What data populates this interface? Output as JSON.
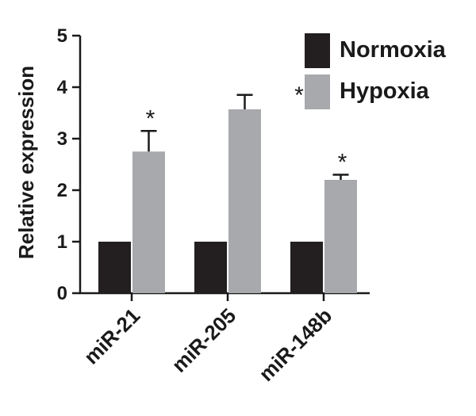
{
  "chart_data": {
    "type": "bar",
    "title": "",
    "xlabel": "",
    "ylabel": "Relative expression",
    "ylim": [
      0,
      5
    ],
    "yticks": [
      "0",
      "1",
      "2",
      "3",
      "4",
      "5"
    ],
    "categories": [
      "miR-21",
      "miR-205",
      "miR-148b"
    ],
    "series": [
      {
        "name": "Normoxia",
        "color": "#231f20",
        "values": [
          1.0,
          1.0,
          1.0
        ]
      },
      {
        "name": "Hypoxia",
        "color": "#a7a9ac",
        "values": [
          2.75,
          3.57,
          2.2
        ],
        "errors": [
          0.4,
          0.28,
          0.1
        ]
      }
    ],
    "significance": [
      "*",
      "*",
      "*"
    ],
    "legend_position": "top-right",
    "grid": false
  }
}
